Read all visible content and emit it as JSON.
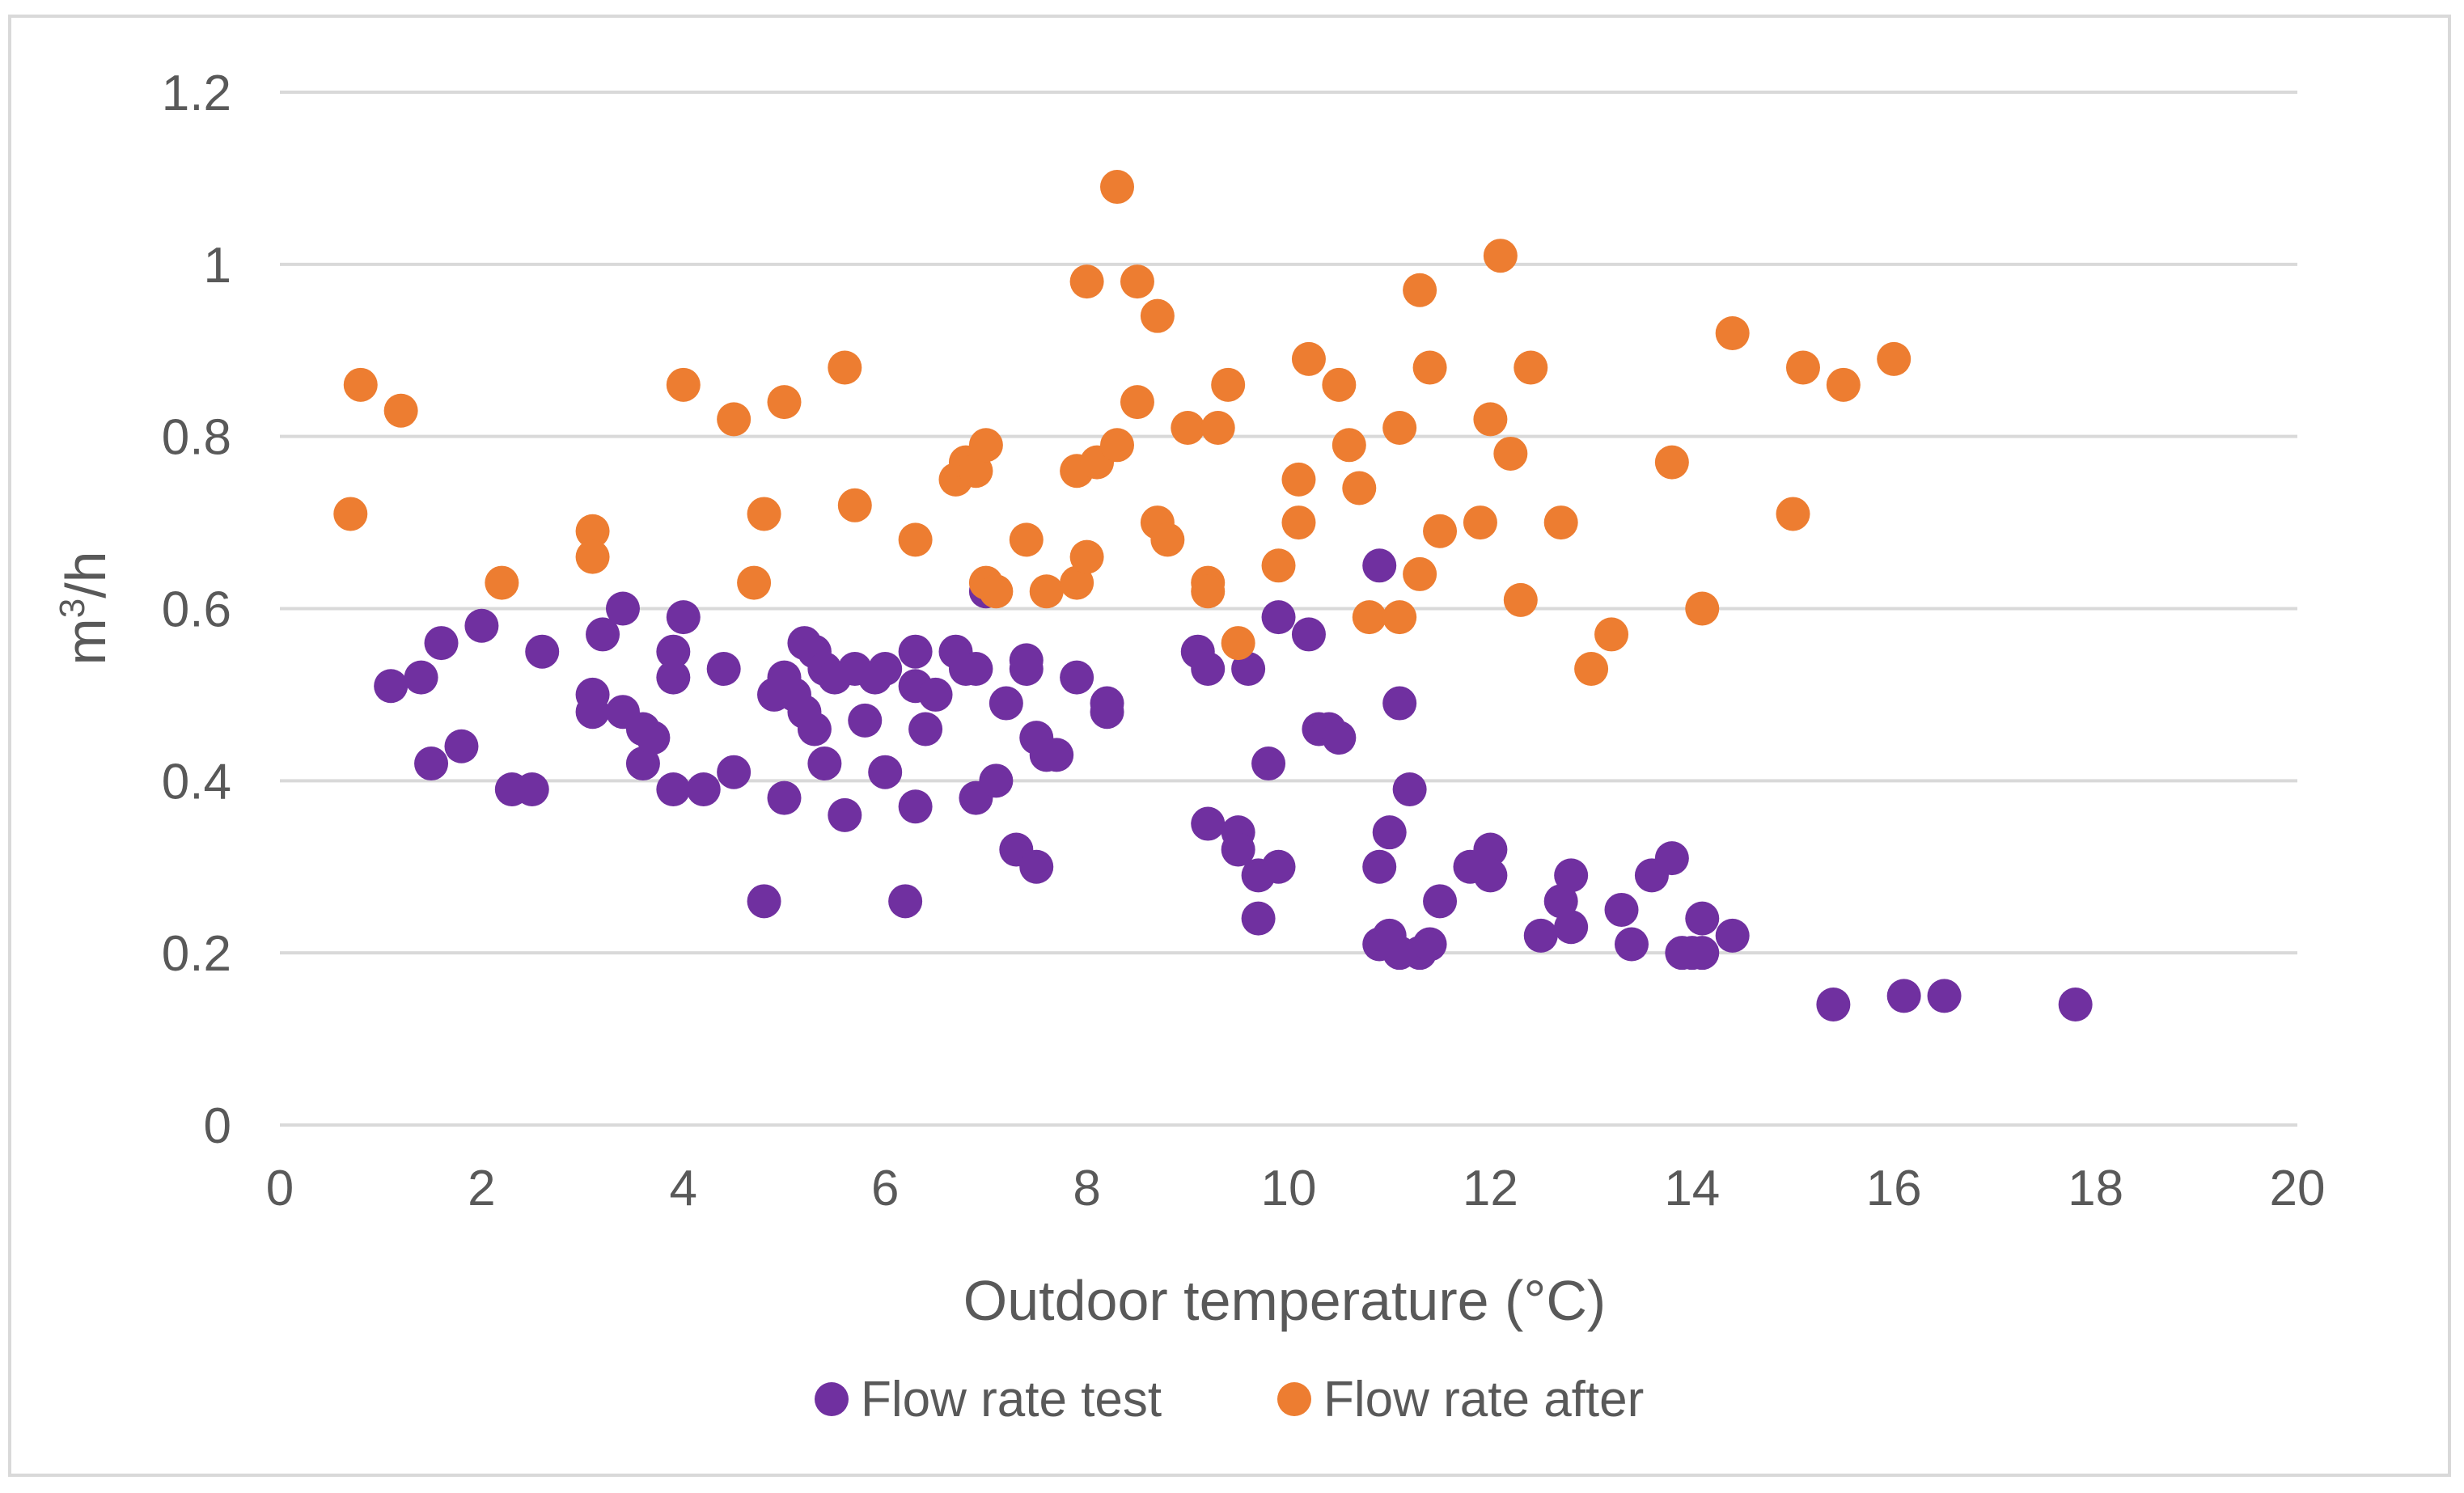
{
  "chart_data": {
    "type": "scatter",
    "title": "",
    "xlabel": "Outdoor temperature (°C)",
    "ylabel_base": "m",
    "ylabel_sup": "3",
    "ylabel_tail": "/h",
    "xlim": [
      0,
      20
    ],
    "ylim": [
      0,
      1.2
    ],
    "xticks": [
      0,
      2,
      4,
      6,
      8,
      10,
      12,
      14,
      16,
      18,
      20
    ],
    "xtick_labels": [
      "0",
      "2",
      "4",
      "6",
      "8",
      "10",
      "12",
      "14",
      "16",
      "18",
      "20"
    ],
    "yticks": [
      0,
      0.2,
      0.4,
      0.6,
      0.8,
      1.0,
      1.2
    ],
    "ytick_labels": [
      "0",
      "0.2",
      "0.4",
      "0.6",
      "0.8",
      "1",
      "1.2"
    ],
    "grid": true,
    "legend_position": "bottom",
    "series": [
      {
        "name": "Flow rate test",
        "color": "#7030a0",
        "points": [
          [
            1.1,
            0.51
          ],
          [
            1.4,
            0.52
          ],
          [
            1.5,
            0.42
          ],
          [
            1.6,
            0.56
          ],
          [
            1.8,
            0.44
          ],
          [
            2.0,
            0.58
          ],
          [
            2.3,
            0.39
          ],
          [
            2.5,
            0.39
          ],
          [
            2.6,
            0.55
          ],
          [
            3.1,
            0.5
          ],
          [
            3.1,
            0.48
          ],
          [
            3.2,
            0.57
          ],
          [
            3.4,
            0.6
          ],
          [
            3.4,
            0.48
          ],
          [
            3.6,
            0.46
          ],
          [
            3.6,
            0.42
          ],
          [
            3.7,
            0.45
          ],
          [
            3.9,
            0.55
          ],
          [
            3.9,
            0.52
          ],
          [
            3.9,
            0.39
          ],
          [
            4.0,
            0.59
          ],
          [
            4.2,
            0.39
          ],
          [
            4.4,
            0.53
          ],
          [
            4.5,
            0.41
          ],
          [
            4.8,
            0.26
          ],
          [
            4.9,
            0.5
          ],
          [
            5.0,
            0.52
          ],
          [
            5.0,
            0.38
          ],
          [
            5.1,
            0.5
          ],
          [
            5.2,
            0.56
          ],
          [
            5.2,
            0.48
          ],
          [
            5.3,
            0.46
          ],
          [
            5.3,
            0.55
          ],
          [
            5.4,
            0.53
          ],
          [
            5.4,
            0.42
          ],
          [
            5.5,
            0.52
          ],
          [
            5.6,
            0.36
          ],
          [
            5.7,
            0.53
          ],
          [
            5.8,
            0.47
          ],
          [
            5.9,
            0.52
          ],
          [
            6.0,
            0.53
          ],
          [
            6.0,
            0.41
          ],
          [
            6.2,
            0.26
          ],
          [
            6.3,
            0.55
          ],
          [
            6.3,
            0.51
          ],
          [
            6.3,
            0.37
          ],
          [
            6.4,
            0.46
          ],
          [
            6.5,
            0.5
          ],
          [
            6.7,
            0.55
          ],
          [
            6.8,
            0.53
          ],
          [
            6.9,
            0.38
          ],
          [
            6.9,
            0.53
          ],
          [
            7.0,
            0.62
          ],
          [
            7.1,
            0.4
          ],
          [
            7.2,
            0.49
          ],
          [
            7.3,
            0.32
          ],
          [
            7.4,
            0.53
          ],
          [
            7.4,
            0.54
          ],
          [
            7.5,
            0.3
          ],
          [
            7.5,
            0.45
          ],
          [
            7.6,
            0.43
          ],
          [
            7.7,
            0.43
          ],
          [
            7.9,
            0.52
          ],
          [
            8.2,
            0.49
          ],
          [
            8.2,
            0.48
          ],
          [
            9.1,
            0.55
          ],
          [
            9.2,
            0.53
          ],
          [
            9.2,
            0.35
          ],
          [
            9.5,
            0.34
          ],
          [
            9.5,
            0.32
          ],
          [
            9.6,
            0.53
          ],
          [
            9.7,
            0.29
          ],
          [
            9.7,
            0.24
          ],
          [
            9.8,
            0.42
          ],
          [
            9.9,
            0.59
          ],
          [
            9.9,
            0.3
          ],
          [
            10.2,
            0.57
          ],
          [
            10.3,
            0.46
          ],
          [
            10.4,
            0.46
          ],
          [
            10.5,
            0.45
          ],
          [
            10.9,
            0.65
          ],
          [
            10.9,
            0.3
          ],
          [
            10.9,
            0.21
          ],
          [
            11.0,
            0.34
          ],
          [
            11.0,
            0.22
          ],
          [
            11.1,
            0.49
          ],
          [
            11.1,
            0.2
          ],
          [
            11.2,
            0.39
          ],
          [
            11.3,
            0.2
          ],
          [
            11.4,
            0.21
          ],
          [
            11.5,
            0.26
          ],
          [
            11.8,
            0.3
          ],
          [
            11.9,
            0.3
          ],
          [
            12.0,
            0.32
          ],
          [
            12.0,
            0.29
          ],
          [
            12.5,
            0.22
          ],
          [
            12.7,
            0.26
          ],
          [
            12.8,
            0.23
          ],
          [
            12.8,
            0.29
          ],
          [
            13.3,
            0.25
          ],
          [
            13.4,
            0.21
          ],
          [
            13.6,
            0.29
          ],
          [
            13.8,
            0.31
          ],
          [
            13.9,
            0.2
          ],
          [
            14.0,
            0.2
          ],
          [
            14.1,
            0.24
          ],
          [
            14.1,
            0.2
          ],
          [
            14.4,
            0.22
          ],
          [
            15.4,
            0.14
          ],
          [
            16.1,
            0.15
          ],
          [
            16.5,
            0.15
          ],
          [
            17.8,
            0.14
          ]
        ]
      },
      {
        "name": "Flow rate after",
        "color": "#ed7d31",
        "points": [
          [
            0.7,
            0.71
          ],
          [
            0.8,
            0.86
          ],
          [
            1.2,
            0.83
          ],
          [
            2.2,
            0.63
          ],
          [
            3.1,
            0.69
          ],
          [
            3.1,
            0.66
          ],
          [
            4.0,
            0.86
          ],
          [
            4.5,
            0.82
          ],
          [
            4.7,
            0.63
          ],
          [
            4.8,
            0.71
          ],
          [
            5.0,
            0.84
          ],
          [
            5.6,
            0.88
          ],
          [
            5.7,
            0.72
          ],
          [
            6.3,
            0.68
          ],
          [
            6.7,
            0.75
          ],
          [
            6.8,
            0.77
          ],
          [
            6.9,
            0.76
          ],
          [
            7.0,
            0.79
          ],
          [
            7.0,
            0.63
          ],
          [
            7.1,
            0.62
          ],
          [
            7.4,
            0.68
          ],
          [
            7.6,
            0.62
          ],
          [
            7.9,
            0.76
          ],
          [
            7.9,
            0.63
          ],
          [
            8.0,
            0.98
          ],
          [
            8.0,
            0.66
          ],
          [
            8.1,
            0.77
          ],
          [
            8.3,
            1.09
          ],
          [
            8.3,
            0.79
          ],
          [
            8.5,
            0.98
          ],
          [
            8.5,
            0.84
          ],
          [
            8.7,
            0.94
          ],
          [
            8.7,
            0.7
          ],
          [
            8.8,
            0.68
          ],
          [
            9.0,
            0.81
          ],
          [
            9.2,
            0.63
          ],
          [
            9.2,
            0.62
          ],
          [
            9.3,
            0.81
          ],
          [
            9.4,
            0.86
          ],
          [
            9.5,
            0.56
          ],
          [
            9.9,
            0.65
          ],
          [
            10.1,
            0.75
          ],
          [
            10.1,
            0.7
          ],
          [
            10.2,
            0.89
          ],
          [
            10.5,
            0.86
          ],
          [
            10.6,
            0.79
          ],
          [
            10.7,
            0.74
          ],
          [
            10.8,
            0.59
          ],
          [
            11.1,
            0.81
          ],
          [
            11.1,
            0.59
          ],
          [
            11.3,
            0.97
          ],
          [
            11.3,
            0.64
          ],
          [
            11.4,
            0.88
          ],
          [
            11.5,
            0.69
          ],
          [
            11.9,
            0.7
          ],
          [
            12.0,
            0.82
          ],
          [
            12.1,
            1.01
          ],
          [
            12.2,
            0.78
          ],
          [
            12.3,
            0.61
          ],
          [
            12.4,
            0.88
          ],
          [
            12.7,
            0.7
          ],
          [
            13.0,
            0.53
          ],
          [
            13.2,
            0.57
          ],
          [
            13.8,
            0.77
          ],
          [
            14.1,
            0.6
          ],
          [
            14.4,
            0.92
          ],
          [
            15.0,
            0.71
          ],
          [
            15.1,
            0.88
          ],
          [
            15.5,
            0.86
          ],
          [
            16.0,
            0.89
          ]
        ]
      }
    ]
  }
}
